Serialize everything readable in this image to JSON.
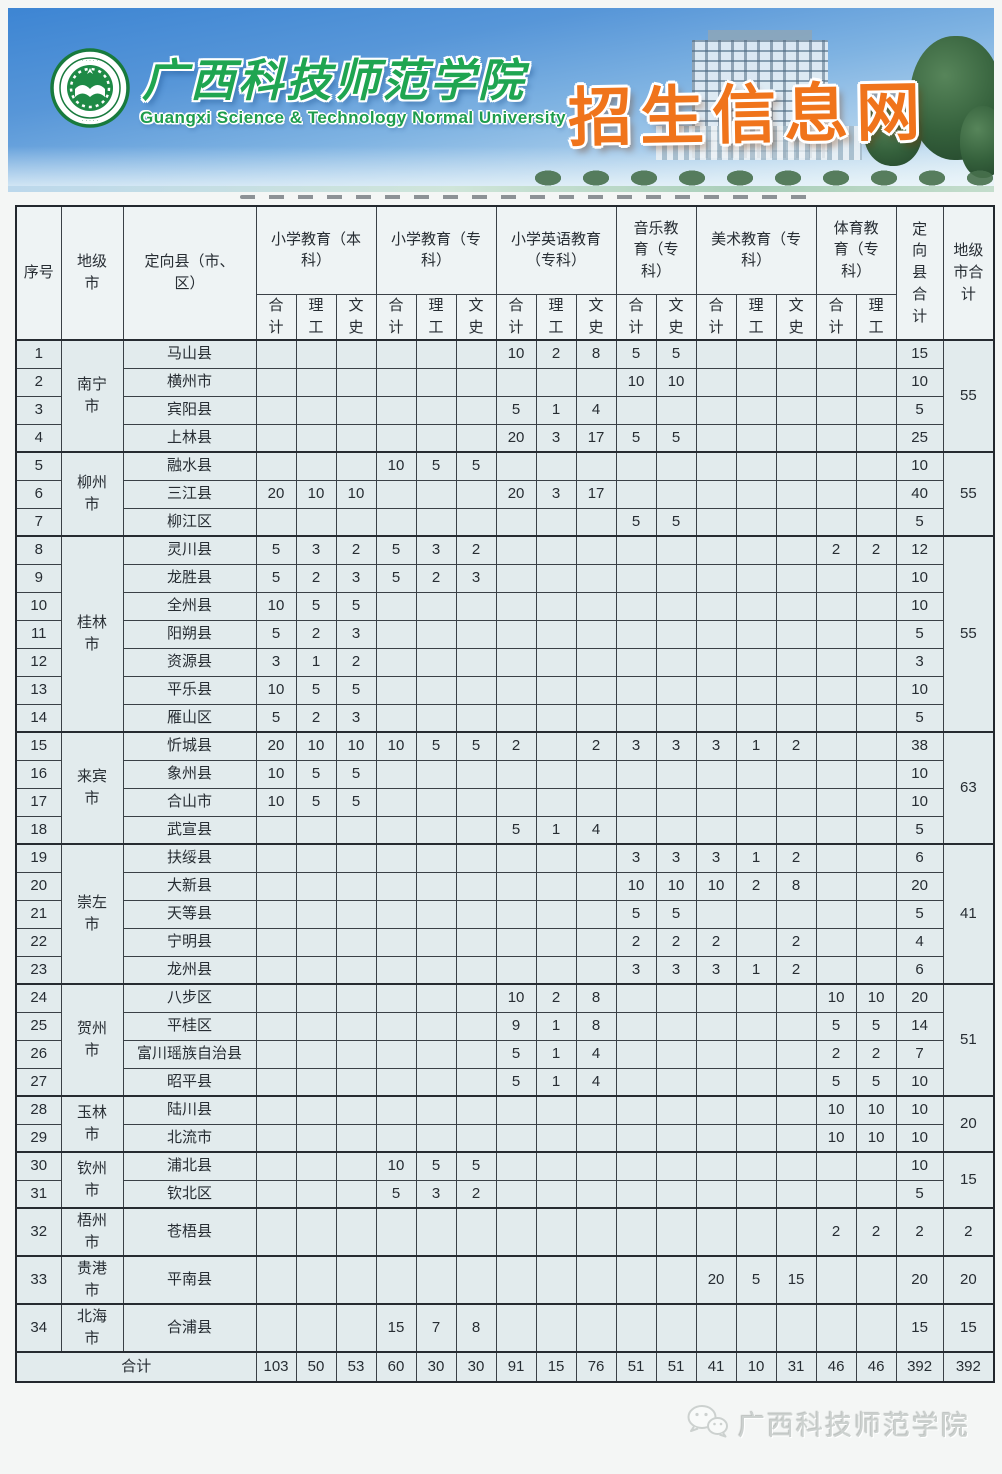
{
  "banner": {
    "university_name_zh": "广西科技师范学院",
    "university_name_en": "Guangxi Science & Technology Normal University",
    "site_name": "招生信息网"
  },
  "footer": {
    "watermark_text": "广西科技师范学院"
  },
  "colors": {
    "university_green": "#1fa551",
    "site_title_orange": "#f0741b",
    "table_cell_bg": "#e2ebed",
    "table_border": "#3a4046"
  },
  "table": {
    "header": {
      "seq": "序号",
      "city": "地级市",
      "county": "定向县（市、区）",
      "county_total": "定向县合计",
      "city_total": "地级市合计"
    },
    "programs": [
      {
        "label": "小学教育（本科）",
        "subs": [
          "合计",
          "理工",
          "文史"
        ]
      },
      {
        "label": "小学教育（专科）",
        "subs": [
          "合计",
          "理工",
          "文史"
        ]
      },
      {
        "label": "小学英语教育（专科）",
        "subs": [
          "合计",
          "理工",
          "文史"
        ]
      },
      {
        "label": "音乐教育（专科）",
        "subs": [
          "合计",
          "文史"
        ]
      },
      {
        "label": "美术教育（专科）",
        "subs": [
          "合计",
          "理工",
          "文史"
        ]
      },
      {
        "label": "体育教育（专科）",
        "subs": [
          "合计",
          "理工"
        ]
      }
    ],
    "groups": [
      {
        "city": "南宁市",
        "city_total": "55",
        "rows": [
          {
            "n": "1",
            "county": "马山县",
            "cells": [
              "",
              "",
              "",
              "",
              "",
              "",
              "10",
              "2",
              "8",
              "5",
              "5",
              "",
              "",
              "",
              "",
              ""
            ],
            "total": "15"
          },
          {
            "n": "2",
            "county": "横州市",
            "cells": [
              "",
              "",
              "",
              "",
              "",
              "",
              "",
              "",
              "",
              "10",
              "10",
              "",
              "",
              "",
              "",
              ""
            ],
            "total": "10"
          },
          {
            "n": "3",
            "county": "宾阳县",
            "cells": [
              "",
              "",
              "",
              "",
              "",
              "",
              "5",
              "1",
              "4",
              "",
              "",
              "",
              "",
              "",
              "",
              ""
            ],
            "total": "5"
          },
          {
            "n": "4",
            "county": "上林县",
            "cells": [
              "",
              "",
              "",
              "",
              "",
              "",
              "20",
              "3",
              "17",
              "5",
              "5",
              "",
              "",
              "",
              "",
              ""
            ],
            "total": "25"
          }
        ]
      },
      {
        "city": "柳州市",
        "city_total": "55",
        "rows": [
          {
            "n": "5",
            "county": "融水县",
            "cells": [
              "",
              "",
              "",
              "10",
              "5",
              "5",
              "",
              "",
              "",
              "",
              "",
              "",
              "",
              "",
              "",
              ""
            ],
            "total": "10"
          },
          {
            "n": "6",
            "county": "三江县",
            "cells": [
              "20",
              "10",
              "10",
              "",
              "",
              "",
              "20",
              "3",
              "17",
              "",
              "",
              "",
              "",
              "",
              "",
              ""
            ],
            "total": "40"
          },
          {
            "n": "7",
            "county": "柳江区",
            "cells": [
              "",
              "",
              "",
              "",
              "",
              "",
              "",
              "",
              "",
              "5",
              "5",
              "",
              "",
              "",
              "",
              ""
            ],
            "total": "5"
          }
        ]
      },
      {
        "city": "桂林市",
        "city_total": "55",
        "rows": [
          {
            "n": "8",
            "county": "灵川县",
            "cells": [
              "5",
              "3",
              "2",
              "5",
              "3",
              "2",
              "",
              "",
              "",
              "",
              "",
              "",
              "",
              "",
              "2",
              "2"
            ],
            "total": "12"
          },
          {
            "n": "9",
            "county": "龙胜县",
            "cells": [
              "5",
              "2",
              "3",
              "5",
              "2",
              "3",
              "",
              "",
              "",
              "",
              "",
              "",
              "",
              "",
              "",
              ""
            ],
            "total": "10"
          },
          {
            "n": "10",
            "county": "全州县",
            "cells": [
              "10",
              "5",
              "5",
              "",
              "",
              "",
              "",
              "",
              "",
              "",
              "",
              "",
              "",
              "",
              "",
              ""
            ],
            "total": "10"
          },
          {
            "n": "11",
            "county": "阳朔县",
            "cells": [
              "5",
              "2",
              "3",
              "",
              "",
              "",
              "",
              "",
              "",
              "",
              "",
              "",
              "",
              "",
              "",
              ""
            ],
            "total": "5"
          },
          {
            "n": "12",
            "county": "资源县",
            "cells": [
              "3",
              "1",
              "2",
              "",
              "",
              "",
              "",
              "",
              "",
              "",
              "",
              "",
              "",
              "",
              "",
              ""
            ],
            "total": "3"
          },
          {
            "n": "13",
            "county": "平乐县",
            "cells": [
              "10",
              "5",
              "5",
              "",
              "",
              "",
              "",
              "",
              "",
              "",
              "",
              "",
              "",
              "",
              "",
              ""
            ],
            "total": "10"
          },
          {
            "n": "14",
            "county": "雁山区",
            "cells": [
              "5",
              "2",
              "3",
              "",
              "",
              "",
              "",
              "",
              "",
              "",
              "",
              "",
              "",
              "",
              "",
              ""
            ],
            "total": "5"
          }
        ]
      },
      {
        "city": "来宾市",
        "city_total": "63",
        "rows": [
          {
            "n": "15",
            "county": "忻城县",
            "cells": [
              "20",
              "10",
              "10",
              "10",
              "5",
              "5",
              "2",
              "",
              "2",
              "3",
              "3",
              "3",
              "1",
              "2",
              "",
              ""
            ],
            "total": "38"
          },
          {
            "n": "16",
            "county": "象州县",
            "cells": [
              "10",
              "5",
              "5",
              "",
              "",
              "",
              "",
              "",
              "",
              "",
              "",
              "",
              "",
              "",
              "",
              ""
            ],
            "total": "10"
          },
          {
            "n": "17",
            "county": "合山市",
            "cells": [
              "10",
              "5",
              "5",
              "",
              "",
              "",
              "",
              "",
              "",
              "",
              "",
              "",
              "",
              "",
              "",
              ""
            ],
            "total": "10"
          },
          {
            "n": "18",
            "county": "武宣县",
            "cells": [
              "",
              "",
              "",
              "",
              "",
              "",
              "5",
              "1",
              "4",
              "",
              "",
              "",
              "",
              "",
              "",
              ""
            ],
            "total": "5"
          }
        ]
      },
      {
        "city": "崇左市",
        "city_total": "41",
        "rows": [
          {
            "n": "19",
            "county": "扶绥县",
            "cells": [
              "",
              "",
              "",
              "",
              "",
              "",
              "",
              "",
              "",
              "3",
              "3",
              "3",
              "1",
              "2",
              "",
              ""
            ],
            "total": "6"
          },
          {
            "n": "20",
            "county": "大新县",
            "cells": [
              "",
              "",
              "",
              "",
              "",
              "",
              "",
              "",
              "",
              "10",
              "10",
              "10",
              "2",
              "8",
              "",
              ""
            ],
            "total": "20"
          },
          {
            "n": "21",
            "county": "天等县",
            "cells": [
              "",
              "",
              "",
              "",
              "",
              "",
              "",
              "",
              "",
              "5",
              "5",
              "",
              "",
              "",
              "",
              ""
            ],
            "total": "5"
          },
          {
            "n": "22",
            "county": "宁明县",
            "cells": [
              "",
              "",
              "",
              "",
              "",
              "",
              "",
              "",
              "",
              "2",
              "2",
              "2",
              "",
              "2",
              "",
              ""
            ],
            "total": "4"
          },
          {
            "n": "23",
            "county": "龙州县",
            "cells": [
              "",
              "",
              "",
              "",
              "",
              "",
              "",
              "",
              "",
              "3",
              "3",
              "3",
              "1",
              "2",
              "",
              ""
            ],
            "total": "6"
          }
        ]
      },
      {
        "city": "贺州市",
        "city_total": "51",
        "rows": [
          {
            "n": "24",
            "county": "八步区",
            "cells": [
              "",
              "",
              "",
              "",
              "",
              "",
              "10",
              "2",
              "8",
              "",
              "",
              "",
              "",
              "",
              "10",
              "10"
            ],
            "total": "20"
          },
          {
            "n": "25",
            "county": "平桂区",
            "cells": [
              "",
              "",
              "",
              "",
              "",
              "",
              "9",
              "1",
              "8",
              "",
              "",
              "",
              "",
              "",
              "5",
              "5"
            ],
            "total": "14"
          },
          {
            "n": "26",
            "county": "富川瑶族自治县",
            "cells": [
              "",
              "",
              "",
              "",
              "",
              "",
              "5",
              "1",
              "4",
              "",
              "",
              "",
              "",
              "",
              "2",
              "2"
            ],
            "total": "7"
          },
          {
            "n": "27",
            "county": "昭平县",
            "cells": [
              "",
              "",
              "",
              "",
              "",
              "",
              "5",
              "1",
              "4",
              "",
              "",
              "",
              "",
              "",
              "5",
              "5"
            ],
            "total": "10"
          }
        ]
      },
      {
        "city": "玉林市",
        "city_total": "20",
        "rows": [
          {
            "n": "28",
            "county": "陆川县",
            "cells": [
              "",
              "",
              "",
              "",
              "",
              "",
              "",
              "",
              "",
              "",
              "",
              "",
              "",
              "",
              "10",
              "10"
            ],
            "total": "10"
          },
          {
            "n": "29",
            "county": "北流市",
            "cells": [
              "",
              "",
              "",
              "",
              "",
              "",
              "",
              "",
              "",
              "",
              "",
              "",
              "",
              "",
              "10",
              "10"
            ],
            "total": "10"
          }
        ]
      },
      {
        "city": "钦州市",
        "city_total": "15",
        "rows": [
          {
            "n": "30",
            "county": "浦北县",
            "cells": [
              "",
              "",
              "",
              "10",
              "5",
              "5",
              "",
              "",
              "",
              "",
              "",
              "",
              "",
              "",
              "",
              ""
            ],
            "total": "10"
          },
          {
            "n": "31",
            "county": "钦北区",
            "cells": [
              "",
              "",
              "",
              "5",
              "3",
              "2",
              "",
              "",
              "",
              "",
              "",
              "",
              "",
              "",
              "",
              ""
            ],
            "total": "5"
          }
        ]
      },
      {
        "city": "梧州市",
        "city_total": "2",
        "rows": [
          {
            "n": "32",
            "county": "苍梧县",
            "cells": [
              "",
              "",
              "",
              "",
              "",
              "",
              "",
              "",
              "",
              "",
              "",
              "",
              "",
              "",
              "2",
              "2"
            ],
            "total": "2"
          }
        ]
      },
      {
        "city": "贵港市",
        "city_total": "20",
        "rows": [
          {
            "n": "33",
            "county": "平南县",
            "cells": [
              "",
              "",
              "",
              "",
              "",
              "",
              "",
              "",
              "",
              "",
              "",
              "20",
              "5",
              "15",
              "",
              ""
            ],
            "total": "20"
          }
        ]
      },
      {
        "city": "北海市",
        "city_total": "15",
        "rows": [
          {
            "n": "34",
            "county": "合浦县",
            "cells": [
              "",
              "",
              "",
              "15",
              "7",
              "8",
              "",
              "",
              "",
              "",
              "",
              "",
              "",
              "",
              "",
              ""
            ],
            "total": "15"
          }
        ]
      }
    ],
    "total_row": {
      "label": "合计",
      "cells": [
        "103",
        "50",
        "53",
        "60",
        "30",
        "30",
        "91",
        "15",
        "76",
        "51",
        "51",
        "41",
        "10",
        "31",
        "46",
        "46"
      ],
      "county_total": "392",
      "city_total": "392"
    }
  }
}
